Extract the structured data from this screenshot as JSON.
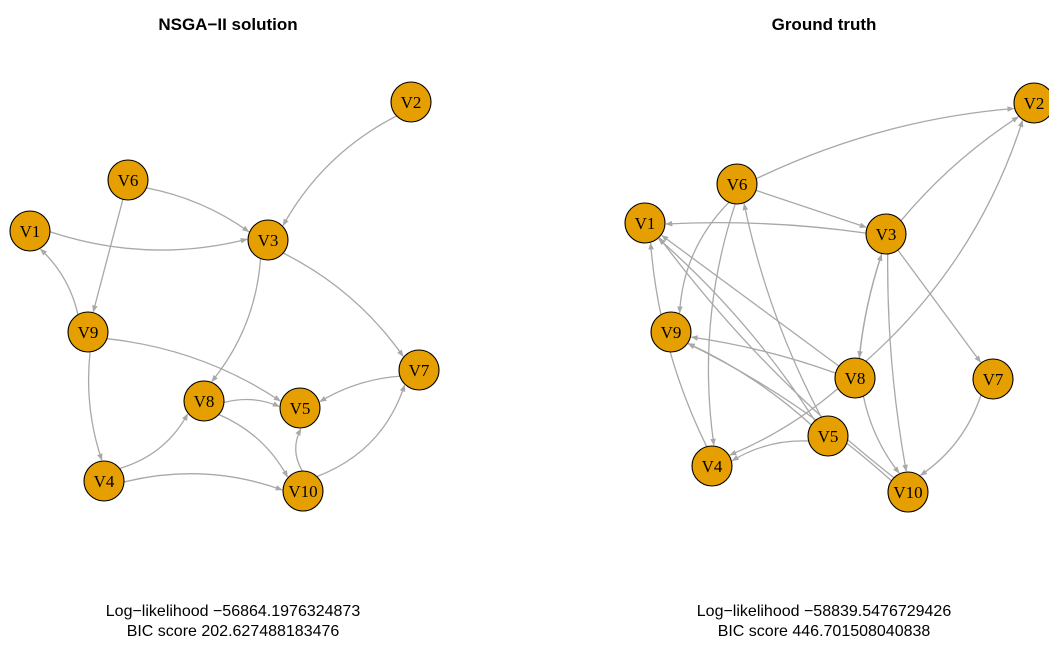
{
  "colors": {
    "node_fill": "#e69f00",
    "node_stroke": "#000000",
    "edge": "#a8a8a8"
  },
  "panels": [
    {
      "title": "NSGA−II solution",
      "stats": {
        "loglik": "Log−likelihood −56864.1976324873",
        "bic": "BIC score 202.627488183476"
      },
      "nodes": [
        "V1",
        "V2",
        "V3",
        "V4",
        "V5",
        "V6",
        "V7",
        "V8",
        "V9",
        "V10"
      ],
      "edges": [
        [
          "V2",
          "V3"
        ],
        [
          "V6",
          "V3"
        ],
        [
          "V1",
          "V3"
        ],
        [
          "V6",
          "V9"
        ],
        [
          "V9",
          "V1"
        ],
        [
          "V3",
          "V7"
        ],
        [
          "V3",
          "V8"
        ],
        [
          "V9",
          "V5"
        ],
        [
          "V9",
          "V4"
        ],
        [
          "V4",
          "V8"
        ],
        [
          "V4",
          "V10"
        ],
        [
          "V8",
          "V5"
        ],
        [
          "V8",
          "V10"
        ],
        [
          "V10",
          "V5"
        ],
        [
          "V7",
          "V5"
        ],
        [
          "V10",
          "V7"
        ]
      ]
    },
    {
      "title": "Ground truth",
      "stats": {
        "loglik": "Log−likelihood −58839.5476729426",
        "bic": "BIC score 446.701508040838"
      },
      "nodes": [
        "V1",
        "V2",
        "V3",
        "V4",
        "V5",
        "V6",
        "V7",
        "V8",
        "V9",
        "V10"
      ],
      "edges": [
        [
          "V6",
          "V2"
        ],
        [
          "V3",
          "V2"
        ],
        [
          "V3",
          "V1"
        ],
        [
          "V6",
          "V3"
        ],
        [
          "V6",
          "V9"
        ],
        [
          "V6",
          "V4"
        ],
        [
          "V5",
          "V6"
        ],
        [
          "V8",
          "V1"
        ],
        [
          "V5",
          "V1"
        ],
        [
          "V4",
          "V1"
        ],
        [
          "V10",
          "V1"
        ],
        [
          "V8",
          "V9"
        ],
        [
          "V5",
          "V9"
        ],
        [
          "V10",
          "V9"
        ],
        [
          "V3",
          "V7"
        ],
        [
          "V3",
          "V8"
        ],
        [
          "V8",
          "V3"
        ],
        [
          "V3",
          "V10"
        ],
        [
          "V8",
          "V2"
        ],
        [
          "V8",
          "V4"
        ],
        [
          "V5",
          "V4"
        ],
        [
          "V8",
          "V10"
        ],
        [
          "V7",
          "V10"
        ]
      ]
    }
  ]
}
